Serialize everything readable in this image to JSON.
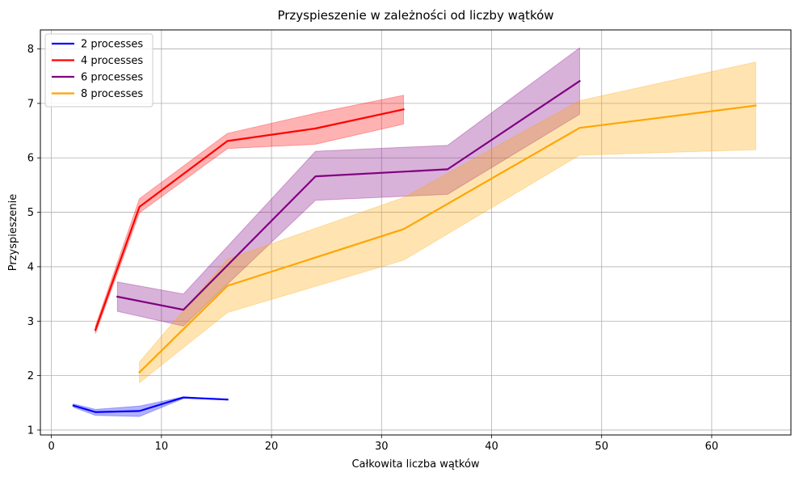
{
  "chart_data": {
    "type": "line",
    "title": "Przyspieszenie w zależności od liczby wątków",
    "xlabel": "Całkowita liczba wątków",
    "ylabel": "Przyspieszenie",
    "xlim": [
      -1.0,
      67.2
    ],
    "ylim": [
      0.91,
      8.35
    ],
    "xticks": [
      0,
      10,
      20,
      30,
      40,
      50,
      60
    ],
    "yticks": [
      1,
      2,
      3,
      4,
      5,
      6,
      7,
      8
    ],
    "grid": true,
    "legend_position": "top-left",
    "series": [
      {
        "name": "2 processes",
        "color": "#0000ff",
        "x": [
          2,
          4,
          8,
          12,
          16
        ],
        "y": [
          1.45,
          1.33,
          1.35,
          1.6,
          1.56
        ],
        "lower": [
          1.42,
          1.27,
          1.25,
          1.58,
          1.56
        ],
        "upper": [
          1.48,
          1.38,
          1.44,
          1.61,
          1.56
        ]
      },
      {
        "name": "4 processes",
        "color": "#ff0000",
        "x": [
          4,
          8,
          16,
          24,
          32
        ],
        "y": [
          2.84,
          5.1,
          6.31,
          6.54,
          6.89
        ],
        "lower": [
          2.77,
          4.99,
          6.17,
          6.25,
          6.62
        ],
        "upper": [
          2.91,
          5.25,
          6.45,
          6.82,
          7.15
        ]
      },
      {
        "name": "6 processes",
        "color": "#800080",
        "x": [
          6,
          12,
          24,
          36,
          48
        ],
        "y": [
          3.45,
          3.21,
          5.66,
          5.79,
          7.41
        ],
        "lower": [
          3.18,
          2.91,
          5.22,
          5.33,
          6.8
        ],
        "upper": [
          3.72,
          3.5,
          6.12,
          6.23,
          8.02
        ]
      },
      {
        "name": "8 processes",
        "color": "#ffa500",
        "x": [
          8,
          16,
          32,
          48,
          64
        ],
        "y": [
          2.06,
          3.65,
          4.69,
          6.55,
          6.96
        ],
        "lower": [
          1.87,
          3.16,
          4.12,
          6.05,
          6.15
        ],
        "upper": [
          2.25,
          4.14,
          5.27,
          7.05,
          7.76
        ]
      }
    ]
  }
}
